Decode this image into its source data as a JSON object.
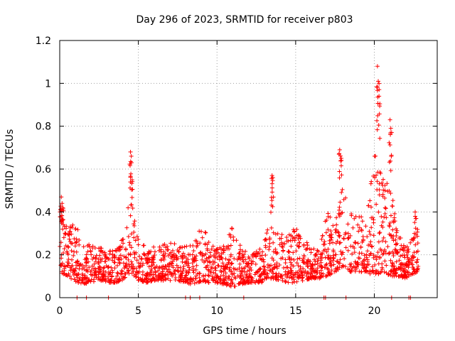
{
  "chart_data": {
    "type": "scatter",
    "title": "Day 296 of 2023, SRMTID for receiver p803",
    "xlabel": "GPS time / hours",
    "ylabel": "SRMTID / TECUs",
    "xlim": [
      0,
      24
    ],
    "ylim": [
      0,
      1.2
    ],
    "xticks": [
      0,
      5,
      10,
      15,
      20
    ],
    "yticks": [
      0,
      0.2,
      0.4,
      0.6,
      0.8,
      1,
      1.2
    ],
    "ytick_labels": [
      "0",
      "0.2",
      "0.4",
      "0.6",
      "0.8",
      "1",
      "1.2"
    ],
    "grid": true,
    "marker": "+",
    "series_color": "#ff0000",
    "notable_points": {
      "x": [
        0.1,
        0.15,
        0.2,
        4.5,
        4.55,
        4.6,
        13.5,
        13.55,
        17.8,
        17.9,
        20.2,
        20.25,
        20.3,
        21.0,
        21.05,
        22.6
      ],
      "y": [
        0.47,
        0.44,
        0.42,
        0.68,
        0.66,
        0.55,
        0.57,
        0.56,
        0.69,
        0.65,
        1.08,
        1.01,
        0.94,
        0.83,
        0.79,
        0.4
      ]
    },
    "zero_points_x": [
      1.1,
      1.7,
      3.1,
      8.0,
      8.3,
      8.9,
      11.7,
      16.8,
      16.9,
      18.2,
      21.1,
      22.2,
      22.3
    ],
    "envelope": {
      "x": [
        0,
        0.5,
        1,
        1.5,
        2,
        2.5,
        3,
        3.5,
        4,
        4.5,
        5,
        5.5,
        6,
        6.5,
        7,
        7.5,
        8,
        8.5,
        9,
        9.5,
        10,
        10.5,
        11,
        11.5,
        12,
        12.5,
        13,
        13.5,
        14,
        14.5,
        15,
        15.5,
        16,
        16.5,
        17,
        17.5,
        18,
        18.5,
        19,
        19.5,
        20,
        20.5,
        21,
        21.5,
        22,
        22.5,
        23
      ],
      "low": [
        0.12,
        0.1,
        0.07,
        0.06,
        0.07,
        0.08,
        0.07,
        0.07,
        0.08,
        0.12,
        0.08,
        0.07,
        0.08,
        0.08,
        0.08,
        0.08,
        0.07,
        0.06,
        0.07,
        0.07,
        0.07,
        0.06,
        0.05,
        0.06,
        0.07,
        0.07,
        0.07,
        0.09,
        0.08,
        0.07,
        0.07,
        0.08,
        0.09,
        0.09,
        0.1,
        0.12,
        0.14,
        0.12,
        0.12,
        0.12,
        0.1,
        0.12,
        0.1,
        0.1,
        0.09,
        0.11,
        0.13
      ],
      "high": [
        0.44,
        0.32,
        0.36,
        0.25,
        0.25,
        0.24,
        0.22,
        0.22,
        0.28,
        0.5,
        0.28,
        0.25,
        0.24,
        0.25,
        0.26,
        0.25,
        0.24,
        0.28,
        0.36,
        0.26,
        0.24,
        0.25,
        0.34,
        0.24,
        0.22,
        0.22,
        0.26,
        0.44,
        0.3,
        0.28,
        0.36,
        0.27,
        0.24,
        0.22,
        0.4,
        0.36,
        0.52,
        0.4,
        0.38,
        0.4,
        0.7,
        0.62,
        0.55,
        0.3,
        0.25,
        0.3,
        0.35
      ]
    },
    "n_points": 1900
  }
}
